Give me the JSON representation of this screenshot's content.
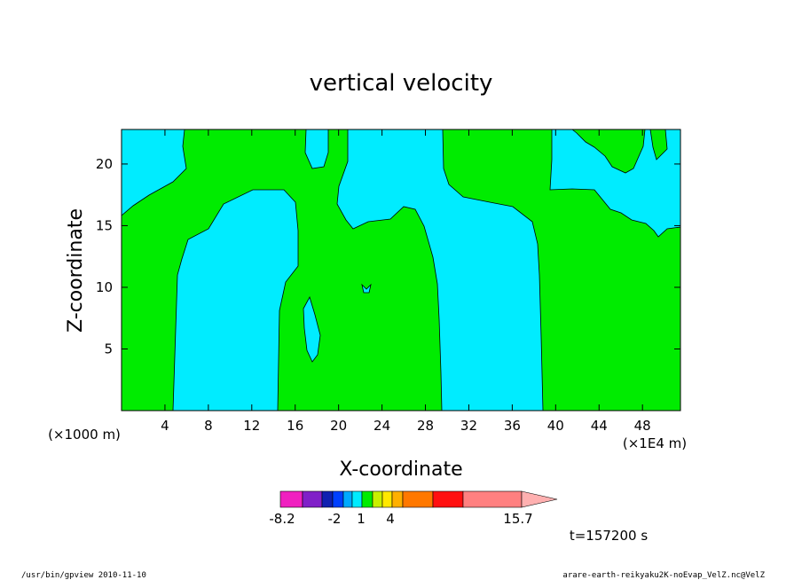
{
  "chart_data": {
    "type": "contour",
    "title": "vertical velocity",
    "xlabel": "X-coordinate",
    "ylabel": "Z-coordinate",
    "x_unit_left": "(×1000 m)",
    "x_unit_right": "(×1E4 m)",
    "x_ticks": [
      4,
      8,
      12,
      16,
      20,
      24,
      28,
      32,
      36,
      40,
      44,
      48
    ],
    "y_ticks": [
      5,
      10,
      15,
      20
    ],
    "xlim": [
      0,
      51.5
    ],
    "ylim": [
      0,
      22.8
    ],
    "fill_colors": {
      "negative": "#00ecff",
      "positive": "#00ec00"
    },
    "colorbar": {
      "colors": [
        "#f020c0",
        "#8020c8",
        "#1020b0",
        "#0040ff",
        "#00aaff",
        "#00ecff",
        "#00ec00",
        "#c8f000",
        "#ffe800",
        "#ffb000",
        "#ff7800",
        "#ff1010",
        "#ff8080",
        "#ffb0b0"
      ],
      "tick_labels": [
        "-8.2",
        "-2",
        "1",
        "4",
        "15.7"
      ]
    },
    "time_label": "t=157200 s"
  },
  "footer": {
    "left": "/usr/bin/gpview  2010-11-10",
    "right": "arare-earth-reikyaku2K-noEvap_VelZ.nc@VelZ"
  }
}
